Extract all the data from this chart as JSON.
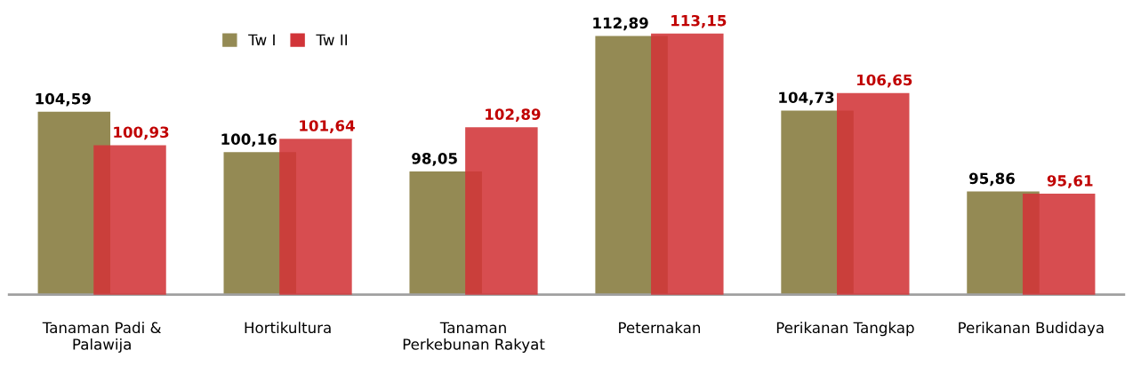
{
  "chart_data": {
    "type": "bar",
    "categories": [
      "Tanaman Padi &\nPalawija",
      "Hortikultura",
      "Tanaman\nPerkebunan Rakyat",
      "Peternakan",
      "Perikanan Tangkap",
      "Perikanan Budidaya"
    ],
    "series": [
      {
        "name": "Tw I",
        "color": "#948a54",
        "values": [
          104.59,
          100.16,
          98.05,
          112.89,
          104.73,
          95.86
        ],
        "value_labels": [
          "104,59",
          "100,16",
          "98,05",
          "112,89",
          "104,73",
          "95,86"
        ]
      },
      {
        "name": "Tw II",
        "color": "#d13438",
        "values": [
          100.93,
          101.64,
          102.89,
          113.15,
          106.65,
          95.61
        ],
        "value_labels": [
          "100,93",
          "101,64",
          "102,89",
          "113,15",
          "106,65",
          "95,61"
        ]
      }
    ],
    "legend": "top left",
    "grid": false
  }
}
